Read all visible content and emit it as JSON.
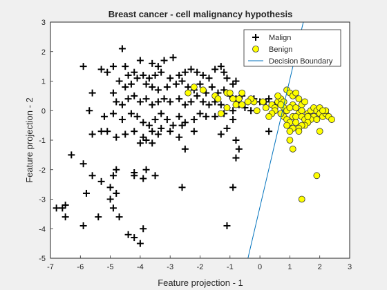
{
  "chart_data": {
    "type": "scatter",
    "title": "Breast cancer - cell malignancy hypothesis",
    "xlabel": "Feature projection - 1",
    "ylabel": "Feature projection - 2",
    "xlim": [
      -7,
      3
    ],
    "ylim": [
      -5,
      3
    ],
    "x_ticks": [
      "-7",
      "-6",
      "-5",
      "-4",
      "-3",
      "-2",
      "-1",
      "0",
      "1",
      "2",
      "3"
    ],
    "y_ticks": [
      "-5",
      "-4",
      "-3",
      "-2",
      "-1",
      "0",
      "1",
      "2",
      "3"
    ],
    "grid": false,
    "legend_position": "top-right",
    "legend": [
      {
        "label": "Malign",
        "marker": "plus"
      },
      {
        "label": "Benign",
        "marker": "circle"
      },
      {
        "label": "Decision Boundary",
        "marker": "line"
      }
    ],
    "series": [
      {
        "name": "Malign",
        "marker": "plus",
        "color": "#000000",
        "points": [
          [
            -4.6,
            2.1
          ],
          [
            -5.9,
            1.5
          ],
          [
            -5.3,
            1.4
          ],
          [
            -4.9,
            1.5
          ],
          [
            -4.5,
            1.5
          ],
          [
            -4.0,
            1.7
          ],
          [
            -3.6,
            1.6
          ],
          [
            -3.4,
            1.5
          ],
          [
            -3.2,
            1.7
          ],
          [
            -2.9,
            1.8
          ],
          [
            -5.1,
            1.3
          ],
          [
            -4.4,
            1.2
          ],
          [
            -4.2,
            1.3
          ],
          [
            -3.9,
            1.2
          ],
          [
            -3.7,
            1.1
          ],
          [
            -3.5,
            1.2
          ],
          [
            -3.3,
            1.3
          ],
          [
            -3.0,
            1.1
          ],
          [
            -2.7,
            1.2
          ],
          [
            -2.5,
            1.3
          ],
          [
            -2.3,
            1.4
          ],
          [
            -2.1,
            1.3
          ],
          [
            -1.9,
            1.2
          ],
          [
            -1.7,
            1.1
          ],
          [
            -1.5,
            1.4
          ],
          [
            -1.3,
            1.5
          ],
          [
            -1.2,
            1.3
          ],
          [
            -1.1,
            1.1
          ],
          [
            -0.9,
            0.9
          ],
          [
            -0.8,
            1.0
          ],
          [
            -4.7,
            1.0
          ],
          [
            -4.5,
            0.8
          ],
          [
            -4.3,
            0.9
          ],
          [
            -4.1,
            1.1
          ],
          [
            -3.8,
            0.9
          ],
          [
            -3.6,
            0.8
          ],
          [
            -3.4,
            0.7
          ],
          [
            -3.1,
            0.8
          ],
          [
            -2.8,
            0.9
          ],
          [
            -2.6,
            1.0
          ],
          [
            -2.4,
            0.8
          ],
          [
            -2.2,
            0.7
          ],
          [
            -2.0,
            0.9
          ],
          [
            -1.8,
            0.6
          ],
          [
            -1.6,
            0.8
          ],
          [
            -1.4,
            0.6
          ],
          [
            -1.2,
            0.7
          ],
          [
            -1.0,
            0.5
          ],
          [
            -0.8,
            0.4
          ],
          [
            -0.6,
            0.5
          ],
          [
            -0.4,
            0.3
          ],
          [
            -0.2,
            0.4
          ],
          [
            0.0,
            0.3
          ],
          [
            0.2,
            0.3
          ],
          [
            0.3,
            0.4
          ],
          [
            0.5,
            0.2
          ],
          [
            -5.6,
            0.6
          ],
          [
            -4.9,
            0.6
          ],
          [
            -4.8,
            0.3
          ],
          [
            -4.6,
            0.2
          ],
          [
            -4.4,
            0.4
          ],
          [
            -4.2,
            0.5
          ],
          [
            -4.0,
            0.3
          ],
          [
            -3.8,
            0.4
          ],
          [
            -3.6,
            0.2
          ],
          [
            -3.4,
            0.3
          ],
          [
            -3.2,
            0.4
          ],
          [
            -3.0,
            0.3
          ],
          [
            -2.7,
            0.4
          ],
          [
            -2.5,
            0.2
          ],
          [
            -2.3,
            0.3
          ],
          [
            -2.1,
            0.5
          ],
          [
            -1.9,
            0.3
          ],
          [
            -1.7,
            0.2
          ],
          [
            -1.5,
            0.3
          ],
          [
            -1.3,
            0.2
          ],
          [
            -1.1,
            0.1
          ],
          [
            -0.9,
            0.0
          ],
          [
            -0.7,
            0.2
          ],
          [
            -0.5,
            0.1
          ],
          [
            -0.3,
            0.0
          ],
          [
            -5.7,
            0.0
          ],
          [
            -5.2,
            -0.2
          ],
          [
            -4.9,
            -0.1
          ],
          [
            -4.6,
            -0.3
          ],
          [
            -4.3,
            -0.1
          ],
          [
            -4.1,
            -0.2
          ],
          [
            -3.9,
            -0.4
          ],
          [
            -3.7,
            -0.5
          ],
          [
            -3.5,
            -0.3
          ],
          [
            -3.3,
            -0.1
          ],
          [
            -3.1,
            -0.3
          ],
          [
            -2.9,
            -0.5
          ],
          [
            -2.7,
            -0.2
          ],
          [
            -2.5,
            -0.4
          ],
          [
            -2.2,
            -0.3
          ],
          [
            -2.0,
            -0.1
          ],
          [
            -1.8,
            -0.2
          ],
          [
            -1.5,
            -0.2
          ],
          [
            -1.2,
            -0.1
          ],
          [
            -0.9,
            -0.3
          ],
          [
            -5.6,
            -0.8
          ],
          [
            -5.3,
            -0.7
          ],
          [
            -5.1,
            -0.7
          ],
          [
            -4.8,
            -0.9
          ],
          [
            -4.5,
            -0.8
          ],
          [
            -4.2,
            -0.7
          ],
          [
            -3.9,
            -0.9
          ],
          [
            -3.6,
            -0.7
          ],
          [
            -3.4,
            -0.8
          ],
          [
            -3.3,
            -0.6
          ],
          [
            -3.0,
            -0.7
          ],
          [
            -2.7,
            -0.9
          ],
          [
            -2.6,
            -0.5
          ],
          [
            -2.2,
            -0.7
          ],
          [
            -1.3,
            -0.8
          ],
          [
            -1.1,
            -0.6
          ],
          [
            -0.8,
            -1.0
          ],
          [
            -0.7,
            -1.3
          ],
          [
            -0.8,
            -1.6
          ],
          [
            0.3,
            -0.7
          ],
          [
            -3.8,
            -1.0
          ],
          [
            -3.6,
            -1.1
          ],
          [
            -2.5,
            -1.3
          ],
          [
            -4.0,
            -1.1
          ],
          [
            -6.3,
            -1.5
          ],
          [
            -5.9,
            -1.8
          ],
          [
            -5.6,
            -2.2
          ],
          [
            -5.3,
            -2.4
          ],
          [
            -4.9,
            -2.2
          ],
          [
            -4.8,
            -2.0
          ],
          [
            -4.2,
            -2.1
          ],
          [
            -4.2,
            -2.2
          ],
          [
            -3.8,
            -2.0
          ],
          [
            -3.9,
            -2.3
          ],
          [
            -3.5,
            -2.2
          ],
          [
            -2.6,
            -2.6
          ],
          [
            -0.9,
            -2.6
          ],
          [
            -5.8,
            -2.8
          ],
          [
            -5.0,
            -2.6
          ],
          [
            -4.8,
            -2.8
          ],
          [
            -6.8,
            -3.3
          ],
          [
            -6.6,
            -3.3
          ],
          [
            -6.5,
            -3.2
          ],
          [
            -6.5,
            -3.6
          ],
          [
            -5.9,
            -3.9
          ],
          [
            -5.4,
            -3.6
          ],
          [
            -5.0,
            -3.0
          ],
          [
            -4.9,
            -3.3
          ],
          [
            -4.7,
            -3.6
          ],
          [
            -4.4,
            -4.2
          ],
          [
            -4.2,
            -4.3
          ],
          [
            -4.0,
            -4.5
          ],
          [
            -3.9,
            -4.0
          ],
          [
            -1.1,
            -3.9
          ]
        ]
      },
      {
        "name": "Benign",
        "marker": "circle",
        "color": "#ffff00",
        "points": [
          [
            -2.4,
            0.6
          ],
          [
            -2.2,
            0.8
          ],
          [
            -1.9,
            0.7
          ],
          [
            -1.5,
            0.5
          ],
          [
            -1.4,
            0.4
          ],
          [
            -1.1,
            0.6
          ],
          [
            -1.0,
            0.6
          ],
          [
            -0.8,
            0.2
          ],
          [
            -0.7,
            0.4
          ],
          [
            -0.6,
            0.2
          ],
          [
            -1.1,
            0.1
          ],
          [
            -1.3,
            -0.1
          ],
          [
            -0.2,
            0.3
          ],
          [
            -0.1,
            0.0
          ],
          [
            -0.3,
            0.4
          ],
          [
            0.1,
            0.3
          ],
          [
            0.2,
            0.1
          ],
          [
            -0.9,
            0.4
          ],
          [
            -0.6,
            0.6
          ],
          [
            -0.4,
            0.3
          ],
          [
            0.4,
            0.2
          ],
          [
            0.5,
            0.1
          ],
          [
            0.6,
            0.3
          ],
          [
            0.7,
            0.4
          ],
          [
            0.8,
            0.1
          ],
          [
            0.9,
            0.0
          ],
          [
            0.9,
            0.7
          ],
          [
            1.0,
            0.6
          ],
          [
            1.1,
            0.5
          ],
          [
            1.2,
            0.6
          ],
          [
            1.3,
            0.4
          ],
          [
            1.4,
            0.2
          ],
          [
            1.5,
            0.3
          ],
          [
            1.1,
            0.2
          ],
          [
            1.2,
            0.1
          ],
          [
            1.0,
            0.1
          ],
          [
            0.8,
            -0.2
          ],
          [
            0.9,
            -0.3
          ],
          [
            1.0,
            -0.4
          ],
          [
            1.1,
            -0.2
          ],
          [
            1.3,
            -0.1
          ],
          [
            1.4,
            -0.2
          ],
          [
            1.5,
            -0.3
          ],
          [
            1.6,
            -0.1
          ],
          [
            1.7,
            0.0
          ],
          [
            1.8,
            0.1
          ],
          [
            1.9,
            0.0
          ],
          [
            2.0,
            -0.1
          ],
          [
            2.1,
            -0.2
          ],
          [
            2.2,
            -0.1
          ],
          [
            2.3,
            -0.2
          ],
          [
            2.4,
            -0.3
          ],
          [
            2.2,
            0.0
          ],
          [
            2.0,
            0.1
          ],
          [
            1.8,
            -0.2
          ],
          [
            1.7,
            -0.3
          ],
          [
            1.6,
            -0.4
          ],
          [
            1.5,
            -0.5
          ],
          [
            1.4,
            -0.5
          ],
          [
            1.3,
            -0.6
          ],
          [
            1.2,
            -0.4
          ],
          [
            1.1,
            -0.6
          ],
          [
            1.0,
            -0.7
          ],
          [
            0.9,
            -0.5
          ],
          [
            0.8,
            0.3
          ],
          [
            0.7,
            0.2
          ],
          [
            0.6,
            0.5
          ],
          [
            0.5,
            0.0
          ],
          [
            0.4,
            -0.1
          ],
          [
            0.3,
            -0.2
          ],
          [
            1.0,
            -1.0
          ],
          [
            1.1,
            -1.3
          ],
          [
            2.0,
            -0.7
          ],
          [
            1.3,
            -0.7
          ],
          [
            1.6,
            -0.2
          ],
          [
            1.9,
            -0.3
          ],
          [
            2.1,
            0.0
          ],
          [
            1.4,
            0.0
          ],
          [
            1.2,
            -0.2
          ],
          [
            0.7,
            -0.1
          ],
          [
            1.9,
            -2.2
          ],
          [
            1.4,
            -3.0
          ]
        ]
      }
    ],
    "decision_boundary": {
      "name": "Decision Boundary",
      "color": "#0072bd",
      "points": [
        [
          -0.4,
          -5
        ],
        [
          1.45,
          3
        ]
      ]
    }
  }
}
